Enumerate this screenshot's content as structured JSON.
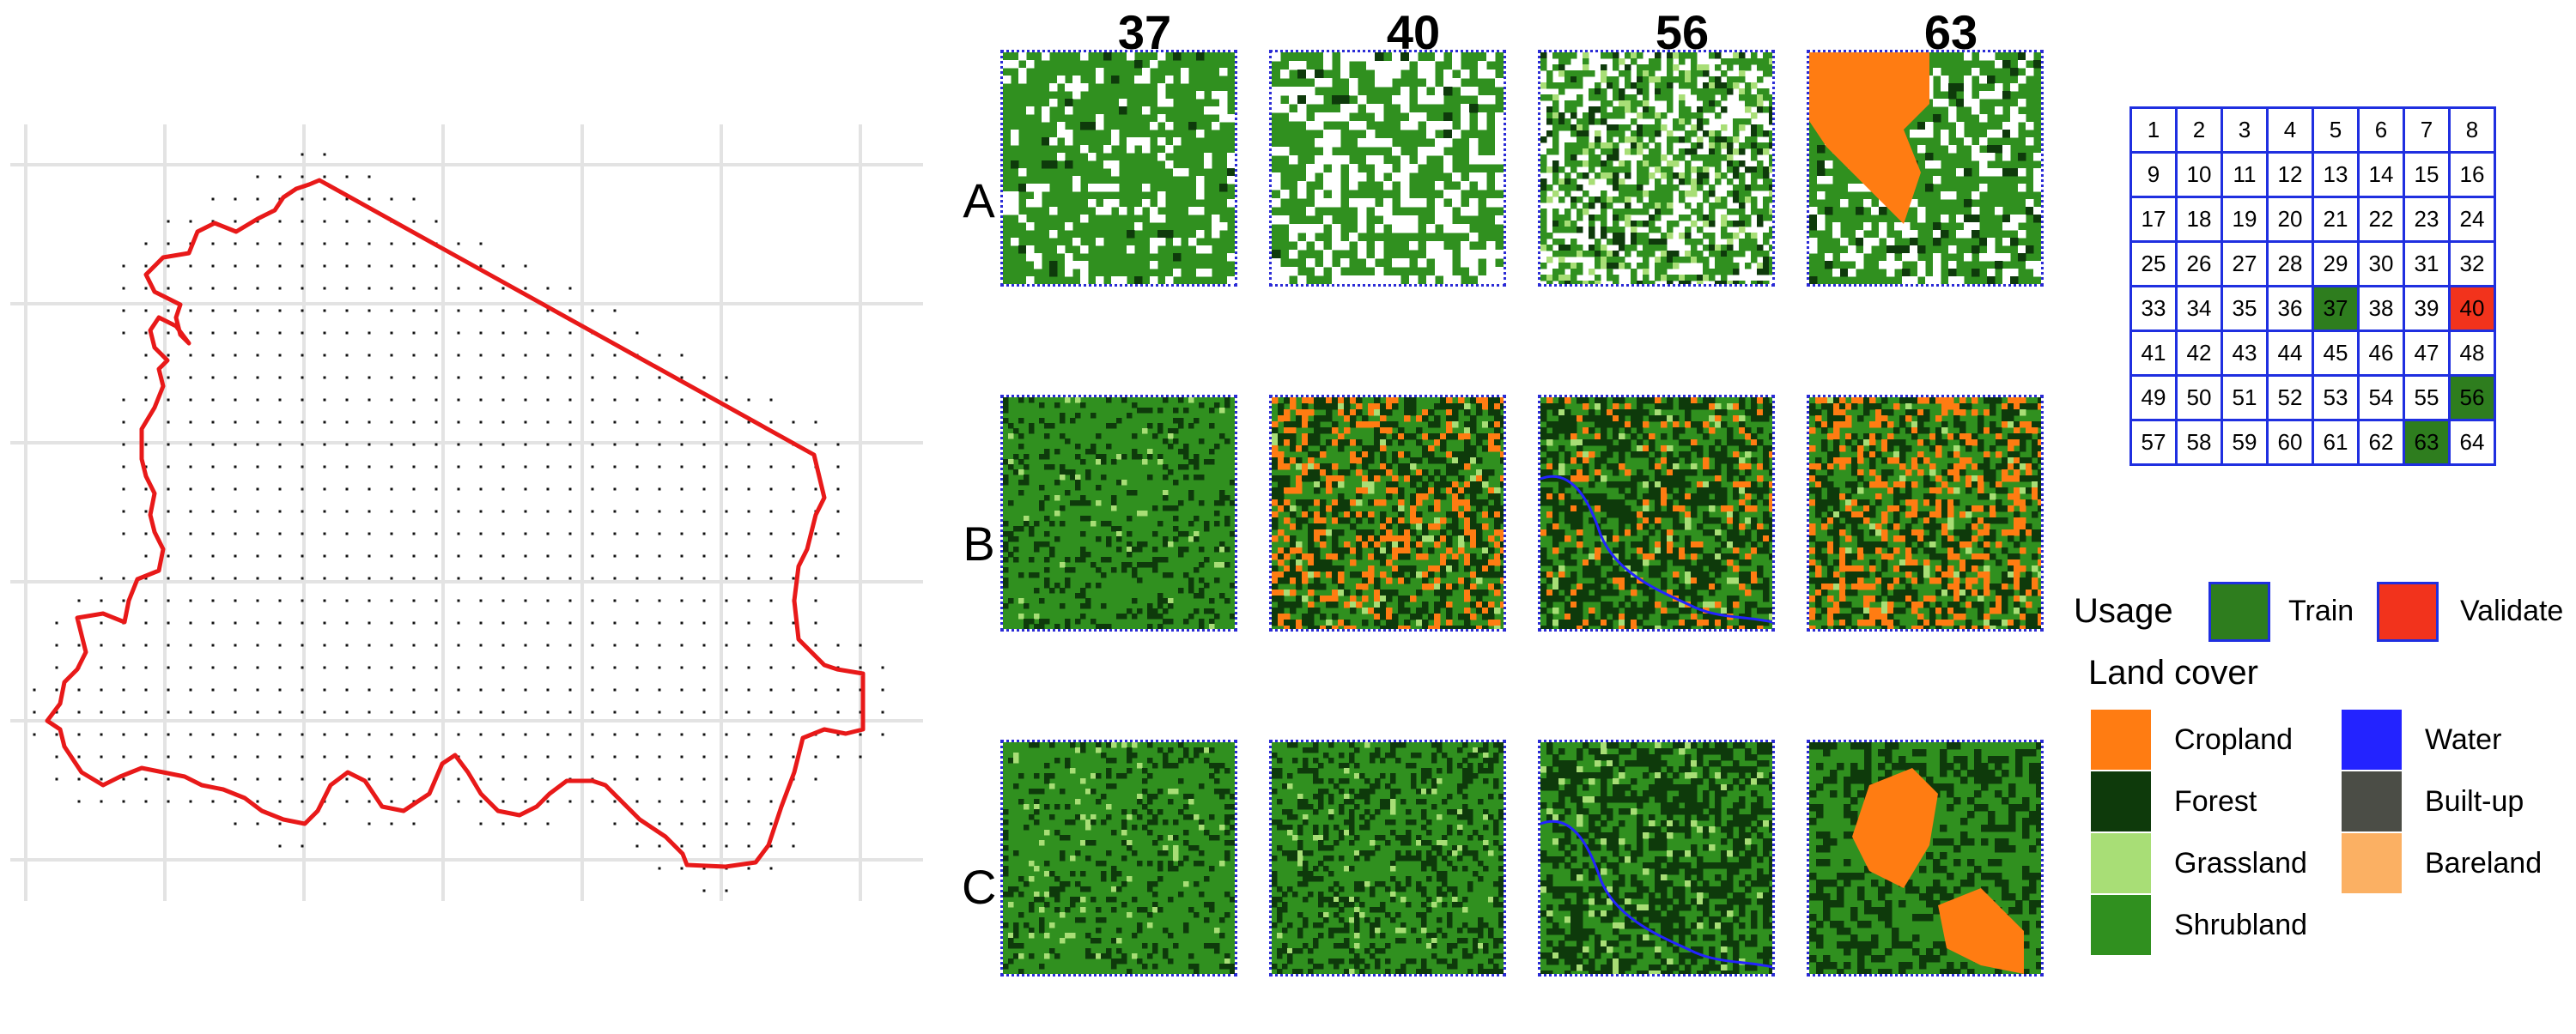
{
  "columns": [
    "37",
    "40",
    "56",
    "63"
  ],
  "rows": [
    "A",
    "B",
    "C"
  ],
  "grid": {
    "cells": [
      "1",
      "2",
      "3",
      "4",
      "5",
      "6",
      "7",
      "8",
      "9",
      "10",
      "11",
      "12",
      "13",
      "14",
      "15",
      "16",
      "17",
      "18",
      "19",
      "20",
      "21",
      "22",
      "23",
      "24",
      "25",
      "26",
      "27",
      "28",
      "29",
      "30",
      "31",
      "32",
      "33",
      "34",
      "35",
      "36",
      "37",
      "38",
      "39",
      "40",
      "41",
      "42",
      "43",
      "44",
      "45",
      "46",
      "47",
      "48",
      "49",
      "50",
      "51",
      "52",
      "53",
      "54",
      "55",
      "56",
      "57",
      "58",
      "59",
      "60",
      "61",
      "62",
      "63",
      "64"
    ],
    "train": [
      "37",
      "56",
      "63"
    ],
    "validate": [
      "40"
    ]
  },
  "usage_legend": {
    "title": "Usage",
    "items": [
      {
        "label": "Train",
        "color": "#2e7d1e"
      },
      {
        "label": "Validate",
        "color": "#f2331c"
      }
    ]
  },
  "landcover_legend": {
    "title": "Land cover",
    "items": [
      {
        "label": "Cropland",
        "color": "#ff7c12"
      },
      {
        "label": "Forest",
        "color": "#0e3a0b"
      },
      {
        "label": "Grassland",
        "color": "#a8de76"
      },
      {
        "label": "Shrubland",
        "color": "#30901f"
      },
      {
        "label": "Water",
        "color": "#2323ff"
      },
      {
        "label": "Built-up",
        "color": "#4b4d46"
      },
      {
        "label": "Bareland",
        "color": "#fbb063"
      }
    ]
  }
}
